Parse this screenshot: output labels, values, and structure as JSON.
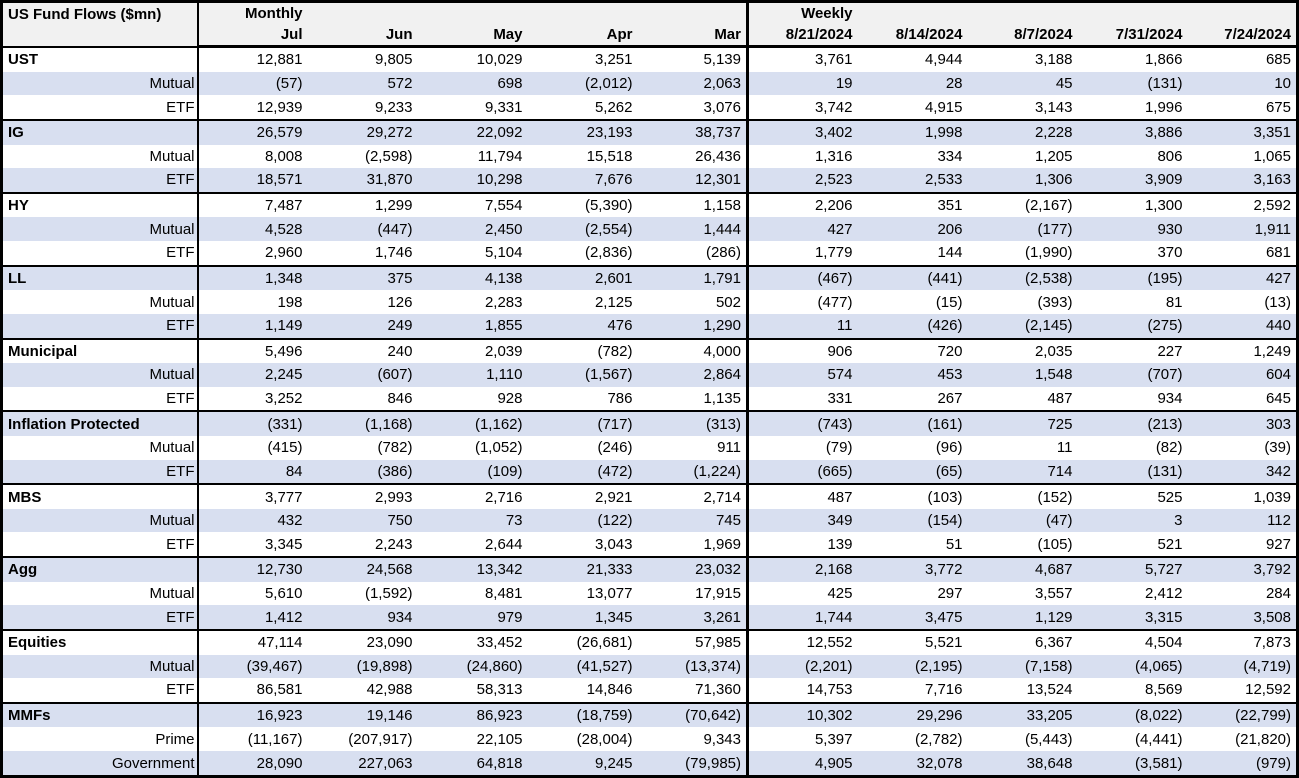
{
  "title": "US Fund Flows ($mn)",
  "colors": {
    "stripe": "#D8DFF0",
    "header_bg": "#F1F1F1",
    "border": "#000000",
    "text": "#000000"
  },
  "chart_data": {
    "type": "table",
    "title": "US Fund Flows ($mn)",
    "units": "$mn",
    "negative_format": "parentheses",
    "column_groups": [
      {
        "label": "Monthly",
        "span": 5
      },
      {
        "label": "Weekly",
        "span": 5
      }
    ],
    "columns": [
      "Jul",
      "Jun",
      "May",
      "Apr",
      "Mar",
      "8/21/2024",
      "8/14/2024",
      "8/7/2024",
      "7/31/2024",
      "7/24/2024"
    ],
    "sections": [
      {
        "name": "UST",
        "rows": [
          {
            "label": "UST",
            "values": [
              12881,
              9805,
              10029,
              3251,
              5139,
              3761,
              4944,
              3188,
              1866,
              685
            ]
          },
          {
            "label": "Mutual",
            "values": [
              -57,
              572,
              698,
              -2012,
              2063,
              19,
              28,
              45,
              -131,
              10
            ]
          },
          {
            "label": "ETF",
            "values": [
              12939,
              9233,
              9331,
              5262,
              3076,
              3742,
              4915,
              3143,
              1996,
              675
            ]
          }
        ]
      },
      {
        "name": "IG",
        "rows": [
          {
            "label": "IG",
            "values": [
              26579,
              29272,
              22092,
              23193,
              38737,
              3402,
              1998,
              2228,
              3886,
              3351
            ]
          },
          {
            "label": "Mutual",
            "values": [
              8008,
              -2598,
              11794,
              15518,
              26436,
              1316,
              334,
              1205,
              806,
              1065
            ]
          },
          {
            "label": "ETF",
            "values": [
              18571,
              31870,
              10298,
              7676,
              12301,
              2523,
              2533,
              1306,
              3909,
              3163
            ]
          }
        ]
      },
      {
        "name": "HY",
        "rows": [
          {
            "label": "HY",
            "values": [
              7487,
              1299,
              7554,
              -5390,
              1158,
              2206,
              351,
              -2167,
              1300,
              2592
            ]
          },
          {
            "label": "Mutual",
            "values": [
              4528,
              -447,
              2450,
              -2554,
              1444,
              427,
              206,
              -177,
              930,
              1911
            ]
          },
          {
            "label": "ETF",
            "values": [
              2960,
              1746,
              5104,
              -2836,
              -286,
              1779,
              144,
              -1990,
              370,
              681
            ]
          }
        ]
      },
      {
        "name": "LL",
        "rows": [
          {
            "label": "LL",
            "values": [
              1348,
              375,
              4138,
              2601,
              1791,
              -467,
              -441,
              -2538,
              -195,
              427
            ]
          },
          {
            "label": "Mutual",
            "values": [
              198,
              126,
              2283,
              2125,
              502,
              -477,
              -15,
              -393,
              81,
              -13
            ]
          },
          {
            "label": "ETF",
            "values": [
              1149,
              249,
              1855,
              476,
              1290,
              11,
              -426,
              -2145,
              -275,
              440
            ]
          }
        ]
      },
      {
        "name": "Municipal",
        "rows": [
          {
            "label": "Municipal",
            "values": [
              5496,
              240,
              2039,
              -782,
              4000,
              906,
              720,
              2035,
              227,
              1249
            ]
          },
          {
            "label": "Mutual",
            "values": [
              2245,
              -607,
              1110,
              -1567,
              2864,
              574,
              453,
              1548,
              -707,
              604
            ]
          },
          {
            "label": "ETF",
            "values": [
              3252,
              846,
              928,
              786,
              1135,
              331,
              267,
              487,
              934,
              645
            ]
          }
        ]
      },
      {
        "name": "Inflation Protected",
        "rows": [
          {
            "label": "Inflation Protected",
            "values": [
              -331,
              -1168,
              -1162,
              -717,
              -313,
              -743,
              -161,
              725,
              -213,
              303
            ]
          },
          {
            "label": "Mutual",
            "values": [
              -415,
              -782,
              -1052,
              -246,
              911,
              -79,
              -96,
              11,
              -82,
              -39
            ]
          },
          {
            "label": "ETF",
            "values": [
              84,
              -386,
              -109,
              -472,
              -1224,
              -665,
              -65,
              714,
              -131,
              342
            ]
          }
        ]
      },
      {
        "name": "MBS",
        "rows": [
          {
            "label": "MBS",
            "values": [
              3777,
              2993,
              2716,
              2921,
              2714,
              487,
              -103,
              -152,
              525,
              1039
            ]
          },
          {
            "label": "Mutual",
            "values": [
              432,
              750,
              73,
              -122,
              745,
              349,
              -154,
              -47,
              3,
              112
            ]
          },
          {
            "label": "ETF",
            "values": [
              3345,
              2243,
              2644,
              3043,
              1969,
              139,
              51,
              -105,
              521,
              927
            ]
          }
        ]
      },
      {
        "name": "Agg",
        "rows": [
          {
            "label": "Agg",
            "values": [
              12730,
              24568,
              13342,
              21333,
              23032,
              2168,
              3772,
              4687,
              5727,
              3792
            ]
          },
          {
            "label": "Mutual",
            "values": [
              5610,
              -1592,
              8481,
              13077,
              17915,
              425,
              297,
              3557,
              2412,
              284
            ]
          },
          {
            "label": "ETF",
            "values": [
              1412,
              934,
              979,
              1345,
              3261,
              1744,
              3475,
              1129,
              3315,
              3508
            ]
          }
        ]
      },
      {
        "name": "Equities",
        "rows": [
          {
            "label": "Equities",
            "values": [
              47114,
              23090,
              33452,
              -26681,
              57985,
              12552,
              5521,
              6367,
              4504,
              7873
            ]
          },
          {
            "label": "Mutual",
            "values": [
              -39467,
              -19898,
              -24860,
              -41527,
              -13374,
              -2201,
              -2195,
              -7158,
              -4065,
              -4719
            ]
          },
          {
            "label": "ETF",
            "values": [
              86581,
              42988,
              58313,
              14846,
              71360,
              14753,
              7716,
              13524,
              8569,
              12592
            ]
          }
        ]
      },
      {
        "name": "MMFs",
        "rows": [
          {
            "label": "MMFs",
            "values": [
              16923,
              19146,
              86923,
              -18759,
              -70642,
              10302,
              29296,
              33205,
              -8022,
              -22799
            ]
          },
          {
            "label": "Prime",
            "values": [
              -11167,
              -207917,
              22105,
              -28004,
              9343,
              5397,
              -2782,
              -5443,
              -4441,
              -21820
            ]
          },
          {
            "label": "Government",
            "values": [
              28090,
              227063,
              64818,
              9245,
              -79985,
              4905,
              32078,
              38648,
              -3581,
              -979
            ]
          }
        ]
      }
    ]
  }
}
